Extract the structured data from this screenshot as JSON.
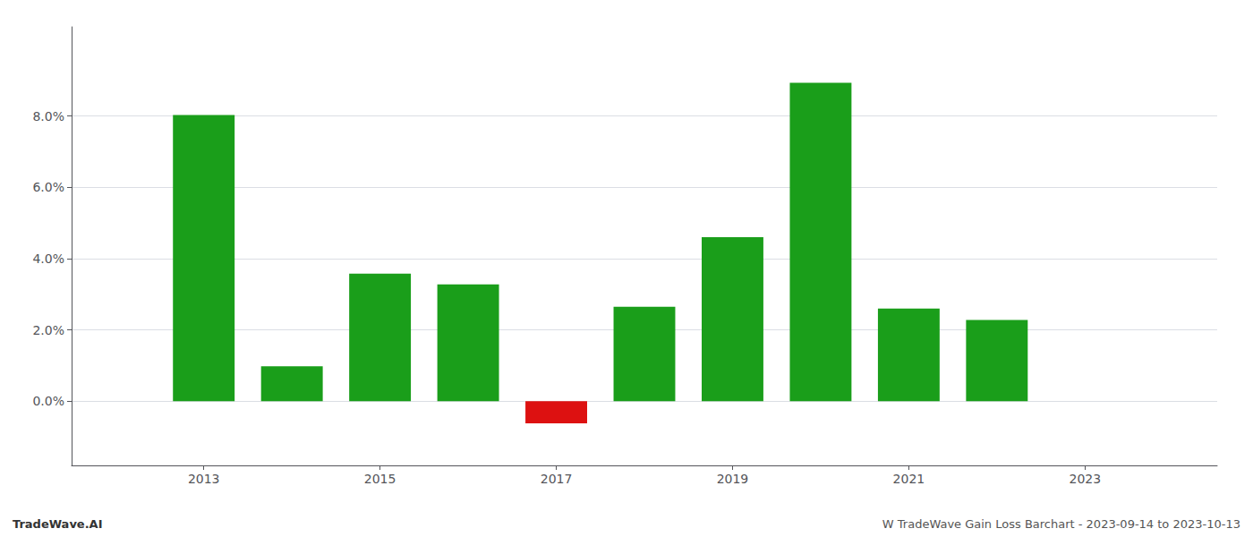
{
  "chart_data": {
    "type": "bar",
    "x": [
      2013,
      2014,
      2015,
      2016,
      2017,
      2018,
      2019,
      2020,
      2021,
      2022
    ],
    "values": [
      0.0803,
      0.0098,
      0.0358,
      0.0328,
      -0.0062,
      0.0265,
      0.046,
      0.0893,
      0.026,
      0.0228
    ],
    "colors": [
      "#1a9e1a",
      "#1a9e1a",
      "#1a9e1a",
      "#1a9e1a",
      "#dd1111",
      "#1a9e1a",
      "#1a9e1a",
      "#1a9e1a",
      "#1a9e1a",
      "#1a9e1a"
    ],
    "xlim": [
      2011.5,
      2024.5
    ],
    "xticks": [
      2013,
      2015,
      2017,
      2019,
      2021,
      2023
    ],
    "ylim": [
      -0.018,
      0.105
    ],
    "yticks": [
      {
        "value": 0.0,
        "label": "0.0%"
      },
      {
        "value": 0.02,
        "label": "2.0%"
      },
      {
        "value": 0.04,
        "label": "4.0%"
      },
      {
        "value": 0.06,
        "label": "6.0%"
      },
      {
        "value": 0.08,
        "label": "8.0%"
      }
    ],
    "grid": true,
    "annotations": [
      "TradeWave.AI",
      "W TradeWave Gain Loss Barchart - 2023-09-14 to 2023-10-13"
    ]
  }
}
